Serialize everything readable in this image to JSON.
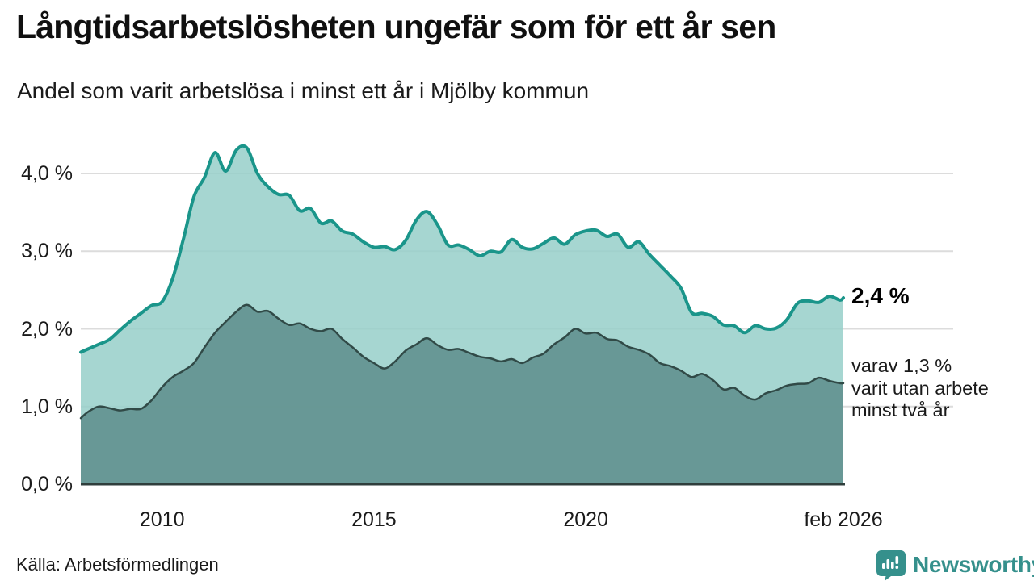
{
  "header": {
    "title": "Långtidsarbetslösheten ungefär som för ett år sen",
    "subtitle": "Andel som varit arbetslösa i minst ett år i Mjölby kommun"
  },
  "chart_data": {
    "type": "area",
    "title": "Långtidsarbetslösheten ungefär som för ett år sen",
    "subtitle": "Andel som varit arbetslösa i minst ett år i Mjölby kommun",
    "x_unit": "decimal_year",
    "xlim": [
      2008.08,
      2026.08
    ],
    "ylim": [
      0,
      4.47
    ],
    "grid": "horizontal",
    "legend_position": "none",
    "x": [
      2008.08,
      2008.25,
      2008.5,
      2008.75,
      2009,
      2009.25,
      2009.5,
      2009.75,
      2010,
      2010.25,
      2010.5,
      2010.75,
      2011,
      2011.25,
      2011.5,
      2011.75,
      2012,
      2012.25,
      2012.5,
      2012.75,
      2013,
      2013.25,
      2013.5,
      2013.75,
      2014,
      2014.25,
      2014.5,
      2014.75,
      2015,
      2015.25,
      2015.5,
      2015.75,
      2016,
      2016.25,
      2016.5,
      2016.75,
      2017,
      2017.25,
      2017.5,
      2017.75,
      2018,
      2018.25,
      2018.5,
      2018.75,
      2019,
      2019.25,
      2019.5,
      2019.75,
      2020,
      2020.25,
      2020.5,
      2020.75,
      2021,
      2021.25,
      2021.5,
      2021.75,
      2022,
      2022.25,
      2022.5,
      2022.75,
      2023,
      2023.25,
      2023.5,
      2023.75,
      2024,
      2024.25,
      2024.5,
      2024.75,
      2025,
      2025.25,
      2025.5,
      2025.75,
      2026,
      2026.08
    ],
    "series": [
      {
        "name": "Andel arbetslösa minst ett år",
        "line_color": "#1a958a",
        "fill_color": "#97cfc9",
        "fill_opacity": 0.85,
        "line_width": 4,
        "values": [
          1.7,
          1.74,
          1.8,
          1.86,
          1.98,
          2.1,
          2.2,
          2.3,
          2.35,
          2.65,
          3.15,
          3.7,
          3.95,
          4.27,
          4.03,
          4.3,
          4.33,
          4.0,
          3.83,
          3.73,
          3.72,
          3.52,
          3.55,
          3.36,
          3.39,
          3.26,
          3.22,
          3.12,
          3.05,
          3.06,
          3.02,
          3.14,
          3.4,
          3.51,
          3.34,
          3.08,
          3.08,
          3.02,
          2.94,
          3.0,
          2.99,
          3.15,
          3.05,
          3.03,
          3.1,
          3.17,
          3.09,
          3.21,
          3.26,
          3.27,
          3.19,
          3.22,
          3.05,
          3.12,
          2.96,
          2.82,
          2.68,
          2.52,
          2.21,
          2.2,
          2.16,
          2.05,
          2.04,
          1.95,
          2.04,
          2.0,
          2.01,
          2.12,
          2.33,
          2.36,
          2.34,
          2.42,
          2.37,
          2.4
        ]
      },
      {
        "name": "Andel arbetslösa minst två år",
        "line_color": "#314a47",
        "fill_color": "#639390",
        "fill_opacity": 0.92,
        "line_width": 2.5,
        "values": [
          0.85,
          0.93,
          1.0,
          0.98,
          0.95,
          0.97,
          0.97,
          1.08,
          1.25,
          1.38,
          1.46,
          1.56,
          1.76,
          1.95,
          2.09,
          2.22,
          2.31,
          2.22,
          2.23,
          2.13,
          2.05,
          2.07,
          2.0,
          1.97,
          2.0,
          1.87,
          1.76,
          1.64,
          1.56,
          1.49,
          1.58,
          1.72,
          1.8,
          1.88,
          1.79,
          1.73,
          1.74,
          1.69,
          1.64,
          1.62,
          1.58,
          1.61,
          1.56,
          1.63,
          1.68,
          1.8,
          1.89,
          2.0,
          1.94,
          1.95,
          1.87,
          1.85,
          1.77,
          1.73,
          1.67,
          1.56,
          1.52,
          1.46,
          1.38,
          1.42,
          1.34,
          1.22,
          1.24,
          1.14,
          1.09,
          1.17,
          1.21,
          1.27,
          1.29,
          1.3,
          1.37,
          1.33,
          1.3,
          1.3
        ]
      }
    ],
    "yticks": [
      {
        "value": 0,
        "label": "0,0 %"
      },
      {
        "value": 1,
        "label": "1,0 %"
      },
      {
        "value": 2,
        "label": "2,0 %"
      },
      {
        "value": 3,
        "label": "3,0 %"
      },
      {
        "value": 4,
        "label": "4,0 %"
      }
    ],
    "xticks": [
      {
        "value": 2010,
        "label": "2010"
      },
      {
        "value": 2015,
        "label": "2015"
      },
      {
        "value": 2020,
        "label": "2020"
      },
      {
        "value": 2026.08,
        "label": "feb 2026"
      }
    ],
    "annotations": {
      "end_value_label": "2,4 %",
      "secondary_label_lines": [
        "varav 1,3 %",
        "varit utan arbete",
        "minst två år"
      ]
    }
  },
  "footer": {
    "source": "Källa: Arbetsförmedlingen",
    "brand": "Newsworthy"
  },
  "colors": {
    "line_1yr": "#1a958a",
    "fill_1yr": "#a3d5cf",
    "line_2yr": "#314a47",
    "fill_2yr": "#6f9c97",
    "grid": "#dcdcdc",
    "axis": "#2f3e3c",
    "brand_teal": "#35908c",
    "text": "#111111"
  }
}
